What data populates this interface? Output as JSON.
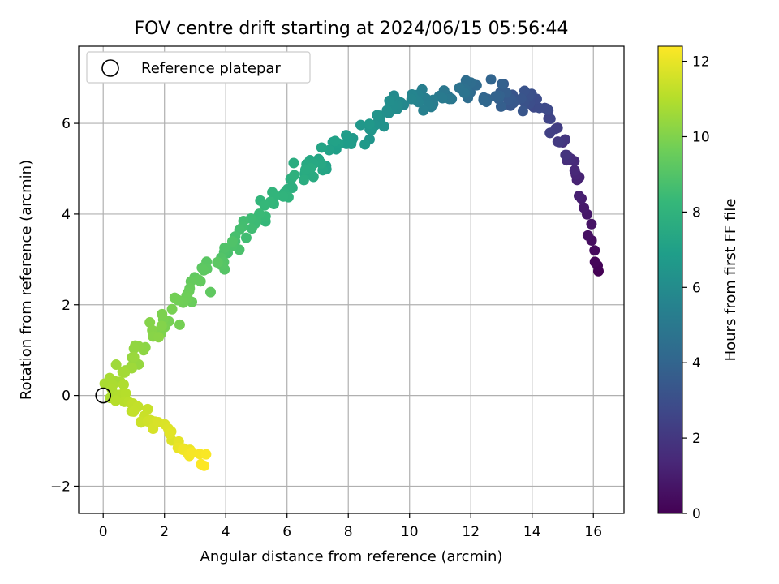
{
  "chart_data": {
    "type": "scatter",
    "title": "FOV centre drift starting at 2024/06/15 05:56:44",
    "xlabel": "Angular distance from reference (arcmin)",
    "ylabel": "Rotation from reference (arcmin)",
    "xlim": [
      -0.8,
      17
    ],
    "ylim": [
      -2.6,
      7.7
    ],
    "xticks": [
      0,
      2,
      4,
      6,
      8,
      10,
      12,
      14,
      16
    ],
    "yticks": [
      -2,
      0,
      2,
      4,
      6
    ],
    "xtick_labels": [
      "0",
      "2",
      "4",
      "6",
      "8",
      "10",
      "12",
      "14",
      "16"
    ],
    "ytick_labels": [
      "−2",
      "0",
      "2",
      "4",
      "6"
    ],
    "grid": true,
    "legend": {
      "position": "top-left",
      "entries": [
        "Reference platepar"
      ]
    },
    "reference_point": {
      "x": 0,
      "y": 0
    },
    "colorbar": {
      "label": "Hours from first FF file",
      "colormap": "viridis",
      "range": [
        0,
        12.4
      ],
      "ticks": [
        0,
        2,
        4,
        6,
        8,
        10,
        12
      ],
      "tick_labels": [
        "0",
        "2",
        "4",
        "6",
        "8",
        "10",
        "12"
      ],
      "colormap_stops": [
        "#440154",
        "#482878",
        "#3e4989",
        "#31688e",
        "#26828e",
        "#1f9e89",
        "#35b779",
        "#6ece58",
        "#b5de2b",
        "#fde725"
      ]
    },
    "segments": [
      {
        "x0": 16.15,
        "y0": 2.6,
        "x1": 15.55,
        "y1": 4.75,
        "t0": 0.0,
        "t1": 1.2,
        "n": 12,
        "jitter": 0.25
      },
      {
        "x0": 15.5,
        "y0": 4.75,
        "x1": 14.4,
        "y1": 6.4,
        "t0": 1.2,
        "t1": 2.8,
        "n": 20,
        "jitter": 0.3
      },
      {
        "x0": 14.2,
        "y0": 6.4,
        "x1": 12.0,
        "y1": 6.8,
        "t0": 2.8,
        "t1": 4.4,
        "n": 34,
        "jitter": 0.38
      },
      {
        "x0": 12.0,
        "y0": 6.8,
        "x1": 9.5,
        "y1": 6.3,
        "t0": 4.4,
        "t1": 6.0,
        "n": 34,
        "jitter": 0.35
      },
      {
        "x0": 9.5,
        "y0": 6.3,
        "x1": 6.5,
        "y1": 5.0,
        "t0": 6.0,
        "t1": 7.6,
        "n": 42,
        "jitter": 0.38
      },
      {
        "x0": 6.5,
        "y0": 5.0,
        "x1": 3.5,
        "y1": 2.8,
        "t0": 7.6,
        "t1": 9.2,
        "n": 46,
        "jitter": 0.4
      },
      {
        "x0": 3.5,
        "y0": 2.8,
        "x1": 0.2,
        "y1": 0.2,
        "t0": 9.2,
        "t1": 10.8,
        "n": 50,
        "jitter": 0.42
      },
      {
        "x0": 0.2,
        "y0": 0.2,
        "x1": 3.3,
        "y1": -1.5,
        "t0": 10.8,
        "t1": 12.4,
        "n": 46,
        "jitter": 0.32
      }
    ]
  }
}
